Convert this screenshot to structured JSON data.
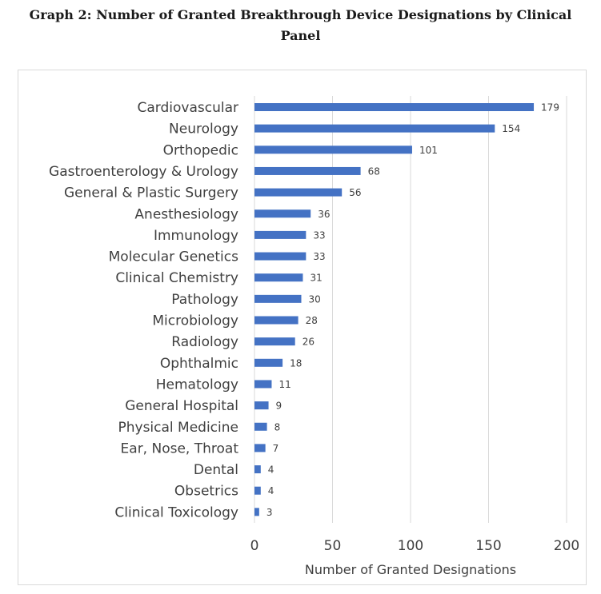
{
  "chart_data": {
    "type": "bar",
    "orientation": "horizontal",
    "title": "Graph 2: Number of Granted Breakthrough Device Designations by Clinical Panel",
    "xlabel": "Number of Granted Designations",
    "ylabel": "",
    "xlim": [
      0,
      200
    ],
    "xticks": [
      0,
      50,
      100,
      150,
      200
    ],
    "grid": true,
    "bar_color": "#4472c4",
    "categories": [
      "Cardiovascular",
      "Neurology",
      "Orthopedic",
      "Gastroenterology & Urology",
      "General & Plastic Surgery",
      "Anesthesiology",
      "Immunology",
      "Molecular Genetics",
      "Clinical Chemistry",
      "Pathology",
      "Microbiology",
      "Radiology",
      "Ophthalmic",
      "Hematology",
      "General Hospital",
      "Physical Medicine",
      "Ear, Nose, Throat",
      "Dental",
      "Obsetrics",
      "Clinical Toxicology"
    ],
    "values": [
      179,
      154,
      101,
      68,
      56,
      36,
      33,
      33,
      31,
      30,
      28,
      26,
      18,
      11,
      9,
      8,
      7,
      4,
      4,
      3
    ]
  }
}
